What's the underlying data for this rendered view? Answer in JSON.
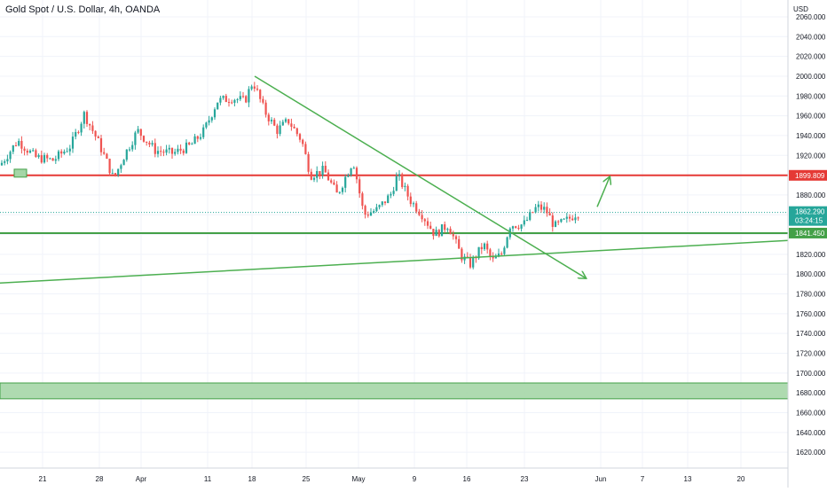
{
  "chart_title": "Gold Spot / U.S. Dollar, 4h, OANDA",
  "currency_label": "USD",
  "price_badges": {
    "resistance": "1899.809",
    "last_price": "1862.290",
    "countdown": "03:24:15",
    "support": "1841.450"
  },
  "colors": {
    "up": "#26a69a",
    "down": "#ef5350",
    "resistance_line": "#e53935",
    "support_line": "#43a047",
    "trendline": "#4caf50",
    "zone_fill": "#a5d6a7",
    "grid": "#f0f3fa"
  },
  "chart_data": {
    "type": "candlestick",
    "symbol": "XAUUSD",
    "timeframe": "4h",
    "ylim": [
      1604,
      2077
    ],
    "y_ticks": [
      1620,
      1640,
      1660,
      1680,
      1700,
      1720,
      1740,
      1760,
      1780,
      1800,
      1820,
      1840,
      1860,
      1880,
      1900,
      1920,
      1940,
      1960,
      1980,
      2000,
      2020,
      2040,
      2060
    ],
    "y_tick_labels": [
      "1620.000",
      "1640.000",
      "1660.000",
      "1680.000",
      "1700.000",
      "1720.000",
      "1740.000",
      "1760.000",
      "1780.000",
      "1800.000",
      "1820.000",
      "1840.000",
      "1860.000",
      "1880.000",
      "1900.000",
      "1920.000",
      "1940.000",
      "1960.000",
      "1980.000",
      "2000.000",
      "2020.000",
      "2040.000",
      "2060.000"
    ],
    "x_tick_labels": [
      "21",
      "28",
      "Apr",
      "11",
      "18",
      "25",
      "May",
      "9",
      "16",
      "23",
      "Jun",
      "7",
      "13",
      "20"
    ],
    "horizontal_levels": [
      {
        "price": 1899.809,
        "label": "1899.809",
        "role": "resistance"
      },
      {
        "price": 1841.45,
        "label": "1841.450",
        "role": "support"
      }
    ],
    "last_price": 1862.29,
    "zone": {
      "from": 1674,
      "to": 1690
    },
    "anchors": [
      {
        "x": 0,
        "y": 1910
      },
      {
        "x": 20,
        "y": 1935
      },
      {
        "x": 40,
        "y": 1918
      },
      {
        "x": 60,
        "y": 1915
      },
      {
        "x": 80,
        "y": 1930
      },
      {
        "x": 95,
        "y": 1962
      },
      {
        "x": 110,
        "y": 1935
      },
      {
        "x": 122,
        "y": 1910
      },
      {
        "x": 128,
        "y": 1896
      },
      {
        "x": 140,
        "y": 1920
      },
      {
        "x": 155,
        "y": 1945
      },
      {
        "x": 175,
        "y": 1925
      },
      {
        "x": 195,
        "y": 1922
      },
      {
        "x": 215,
        "y": 1930
      },
      {
        "x": 230,
        "y": 1945
      },
      {
        "x": 245,
        "y": 1975
      },
      {
        "x": 262,
        "y": 1978
      },
      {
        "x": 276,
        "y": 1975
      },
      {
        "x": 285,
        "y": 1995
      },
      {
        "x": 298,
        "y": 1965
      },
      {
        "x": 312,
        "y": 1945
      },
      {
        "x": 325,
        "y": 1955
      },
      {
        "x": 340,
        "y": 1935
      },
      {
        "x": 350,
        "y": 1900
      },
      {
        "x": 365,
        "y": 1905
      },
      {
        "x": 380,
        "y": 1880
      },
      {
        "x": 398,
        "y": 1915
      },
      {
        "x": 410,
        "y": 1860
      },
      {
        "x": 425,
        "y": 1865
      },
      {
        "x": 440,
        "y": 1880
      },
      {
        "x": 448,
        "y": 1900
      },
      {
        "x": 462,
        "y": 1875
      },
      {
        "x": 476,
        "y": 1860
      },
      {
        "x": 490,
        "y": 1840
      },
      {
        "x": 505,
        "y": 1850
      },
      {
        "x": 520,
        "y": 1818
      },
      {
        "x": 530,
        "y": 1810
      },
      {
        "x": 545,
        "y": 1830
      },
      {
        "x": 555,
        "y": 1813
      },
      {
        "x": 565,
        "y": 1820
      },
      {
        "x": 575,
        "y": 1850
      },
      {
        "x": 590,
        "y": 1850
      },
      {
        "x": 605,
        "y": 1868
      },
      {
        "x": 615,
        "y": 1865
      },
      {
        "x": 625,
        "y": 1848
      },
      {
        "x": 640,
        "y": 1855
      },
      {
        "x": 650,
        "y": 1862
      }
    ],
    "trendlines": [
      {
        "from": {
          "x": 287,
          "y": 2000
        },
        "to": {
          "x": 660,
          "y": 1796
        },
        "arrow": true,
        "style": "descending"
      },
      {
        "from": {
          "x": 0,
          "y": 1791
        },
        "to": {
          "x": 888,
          "y": 1834
        },
        "arrow": false,
        "style": "ascending"
      },
      {
        "from": {
          "x": 673,
          "y": 1868
        },
        "to": {
          "x": 687,
          "y": 1898
        },
        "arrow": true,
        "style": "projection"
      }
    ],
    "highlight_box": {
      "x0": 16,
      "x1": 30,
      "y0": 1898,
      "y1": 1906
    }
  }
}
